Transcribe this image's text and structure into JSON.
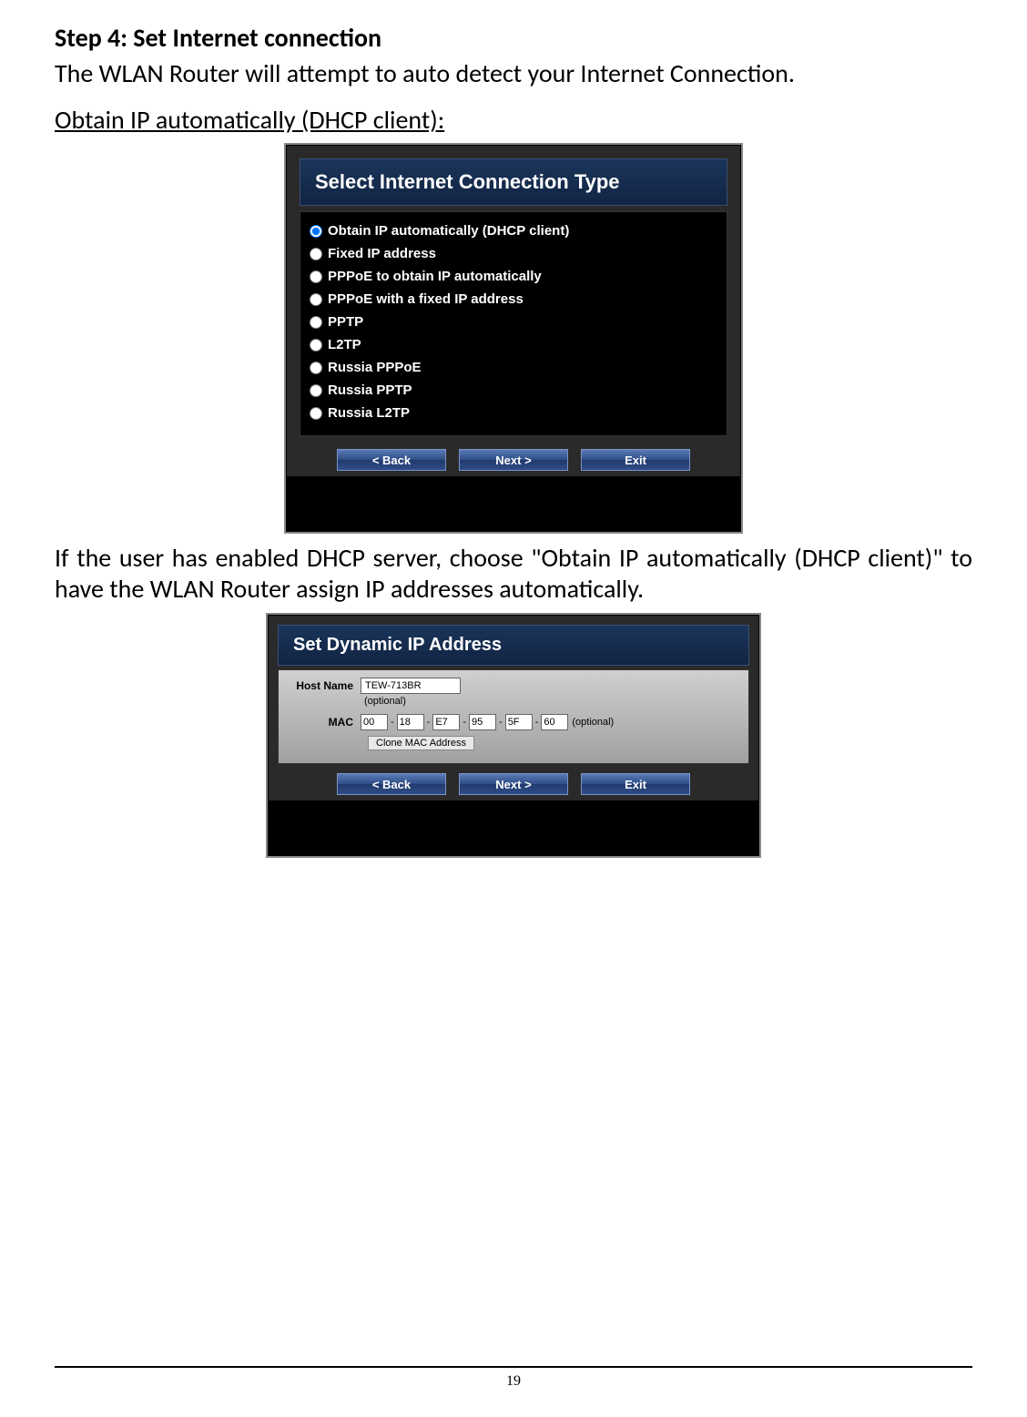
{
  "step_title": "Step 4: Set Internet connection",
  "intro_text": "The WLAN Router will attempt to auto detect your Internet Connection.",
  "section_subtitle": "Obtain IP automatically (DHCP client):",
  "dialog1": {
    "title": "Select Internet Connection Type",
    "options": [
      "Obtain IP automatically (DHCP client)",
      "Fixed IP address",
      "PPPoE to obtain IP automatically",
      "PPPoE with a fixed IP address",
      "PPTP",
      "L2TP",
      "Russia PPPoE",
      "Russia PPTP",
      "Russia L2TP"
    ],
    "selected_index": 0,
    "buttons": {
      "back": "< Back",
      "next": "Next >",
      "exit": "Exit"
    }
  },
  "between_text": "If the user has enabled DHCP server, choose \"Obtain IP automatically (DHCP client)\" to have the WLAN Router assign IP addresses automatically.",
  "dialog2": {
    "title": "Set Dynamic IP Address",
    "host_name_label": "Host Name",
    "host_name_value": "TEW-713BR",
    "optional": "(optional)",
    "mac_label": "MAC",
    "mac": [
      "00",
      "18",
      "E7",
      "95",
      "5F",
      "60"
    ],
    "clone_label": "Clone MAC Address",
    "buttons": {
      "back": "< Back",
      "next": "Next >",
      "exit": "Exit"
    }
  },
  "page_number": "19",
  "colors": {
    "dialog_header_bg_top": "#1a355a",
    "dialog_header_bg_bottom": "#122443",
    "button_bg": "#2f4d86",
    "body_bg": "#000000",
    "text_white": "#ffffff"
  }
}
